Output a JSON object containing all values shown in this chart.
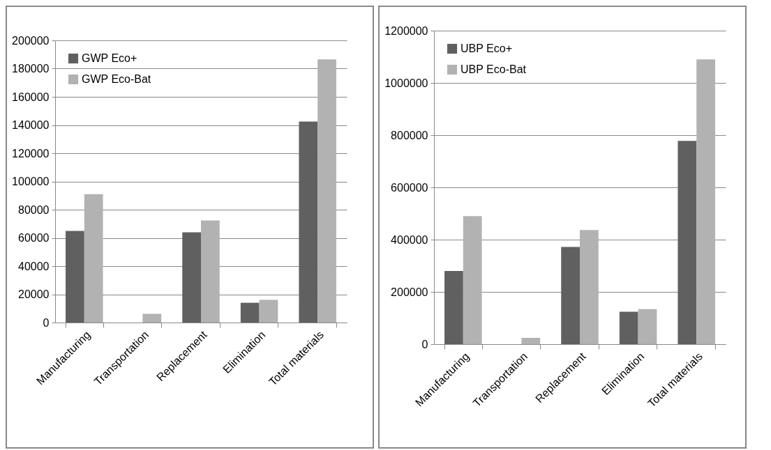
{
  "chart_data": [
    {
      "type": "bar",
      "categories": [
        "Manufacturing",
        "Transportation",
        "Replacement",
        "Elimination",
        "Total materials"
      ],
      "series": [
        {
          "name": "GWP Eco+",
          "color": "#606060",
          "values": [
            65000,
            0,
            64000,
            14000,
            142500
          ]
        },
        {
          "name": "GWP Eco-Bat",
          "color": "#b2b2b2",
          "values": [
            91000,
            6200,
            72400,
            16100,
            186500
          ]
        }
      ],
      "ylim": [
        0,
        200000
      ],
      "yticks": [
        0,
        20000,
        40000,
        60000,
        80000,
        100000,
        120000,
        140000,
        160000,
        180000,
        200000
      ],
      "grid": "y",
      "legend": "top left"
    },
    {
      "type": "bar",
      "categories": [
        "Manufacturing",
        "Transportation",
        "Replacement",
        "Elimination",
        "Total materials"
      ],
      "series": [
        {
          "name": "UBP Eco+",
          "color": "#606060",
          "values": [
            280000,
            0,
            372000,
            124000,
            778000
          ]
        },
        {
          "name": "UBP Eco-Bat",
          "color": "#b2b2b2",
          "values": [
            490000,
            24000,
            437000,
            134000,
            1090000
          ]
        }
      ],
      "ylim": [
        0,
        1200000
      ],
      "yticks": [
        0,
        200000,
        400000,
        600000,
        800000,
        1000000,
        1200000
      ],
      "grid": "y",
      "legend": "top left"
    }
  ]
}
